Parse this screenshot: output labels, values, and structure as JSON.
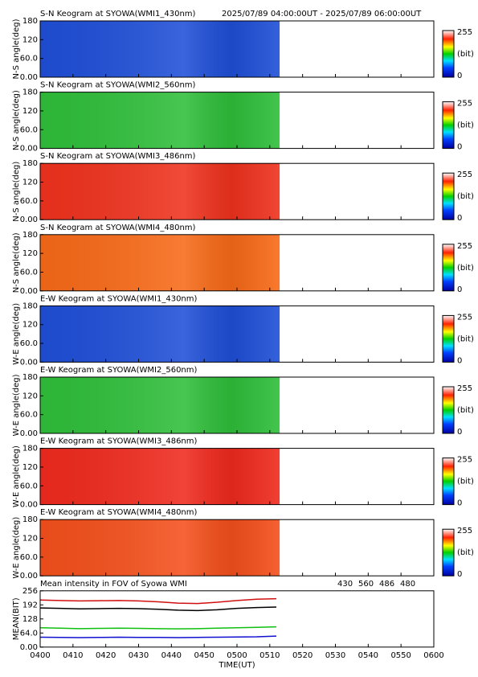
{
  "chart_data": [
    {
      "type": "heatmap",
      "title": "S-N Keogram at SYOWA(WMI1_430nm)",
      "subtitle": "2025/07/89 04:00:00UT - 2025/07/89 06:00:00UT",
      "ylabel": "N-S angle(deg)",
      "color": "#1f4fd8",
      "data_xlim": [
        0,
        73
      ],
      "ylim": [
        0,
        180
      ],
      "yticks": [
        {
          "value": 0,
          "label": "0.00"
        },
        {
          "value": 60,
          "label": "60.0"
        },
        120,
        180
      ],
      "clim": [
        0,
        255
      ],
      "clabel": "(bit)"
    },
    {
      "type": "heatmap",
      "title": "S-N Keogram at SYOWA(WMI2_560nm)",
      "ylabel": "N-S angle(deg)",
      "color": "#2fbf3a",
      "data_xlim": [
        0,
        73
      ],
      "ylim": [
        0,
        180
      ],
      "yticks": [
        {
          "value": 0,
          "label": "0.00"
        },
        {
          "value": 60,
          "label": "60.0"
        },
        120,
        180
      ],
      "clim": [
        0,
        255
      ],
      "clabel": "(bit)"
    },
    {
      "type": "heatmap",
      "title": "S-N Keogram at SYOWA(WMI3_486nm)",
      "ylabel": "N-S angle(deg)",
      "color": "#f0321e",
      "data_xlim": [
        0,
        73
      ],
      "ylim": [
        0,
        180
      ],
      "yticks": [
        {
          "value": 0,
          "label": "0.00"
        },
        {
          "value": 60,
          "label": "60.0"
        },
        120,
        180
      ],
      "clim": [
        0,
        255
      ],
      "clabel": "(bit)"
    },
    {
      "type": "heatmap",
      "title": "S-N Keogram at SYOWA(WMI4_480nm)",
      "ylabel": "N-S angle(deg)",
      "color": "#f86a18",
      "data_xlim": [
        0,
        73
      ],
      "ylim": [
        0,
        180
      ],
      "yticks": [
        {
          "value": 0,
          "label": "0.00"
        },
        {
          "value": 60,
          "label": "60.0"
        },
        120,
        180
      ],
      "clim": [
        0,
        255
      ],
      "clabel": "(bit)"
    },
    {
      "type": "heatmap",
      "title": "E-W Keogram at SYOWA(WMI1_430nm)",
      "ylabel": "W-E angle(deg)",
      "color": "#1f4fd8",
      "data_xlim": [
        0,
        73
      ],
      "ylim": [
        0,
        180
      ],
      "yticks": [
        {
          "value": 0,
          "label": "0.00"
        },
        {
          "value": 60,
          "label": "60.0"
        },
        120,
        180
      ],
      "clim": [
        0,
        255
      ],
      "clabel": "(bit)"
    },
    {
      "type": "heatmap",
      "title": "E-W Keogram at SYOWA(WMI2_560nm)",
      "ylabel": "W-E angle(deg)",
      "color": "#2fbf3a",
      "data_xlim": [
        0,
        73
      ],
      "ylim": [
        0,
        180
      ],
      "yticks": [
        {
          "value": 0,
          "label": "0.00"
        },
        {
          "value": 60,
          "label": "60.0"
        },
        120,
        180
      ],
      "clim": [
        0,
        255
      ],
      "clabel": "(bit)"
    },
    {
      "type": "heatmap",
      "title": "E-W Keogram at SYOWA(WMI3_486nm)",
      "ylabel": "W-E angle(deg)",
      "color": "#f02a1e",
      "data_xlim": [
        0,
        73
      ],
      "ylim": [
        0,
        180
      ],
      "yticks": [
        {
          "value": 0,
          "label": "0.00"
        },
        {
          "value": 60,
          "label": "60.0"
        },
        120,
        180
      ],
      "clim": [
        0,
        255
      ],
      "clabel": "(bit)"
    },
    {
      "type": "heatmap",
      "title": "E-W Keogram at SYOWA(WMI4_480nm)",
      "ylabel": "W-E angle(deg)",
      "color": "#f5501c",
      "data_xlim": [
        0,
        73
      ],
      "ylim": [
        0,
        180
      ],
      "yticks": [
        {
          "value": 0,
          "label": "0.00"
        },
        {
          "value": 60,
          "label": "60.0"
        },
        120,
        180
      ],
      "clim": [
        0,
        255
      ],
      "clabel": "(bit)"
    },
    {
      "type": "line",
      "title": "Mean intensity in FOV of Syowa WMI",
      "ylabel": "MEAN(BIT)",
      "xlabel": "TIME(UT)",
      "x": [
        0,
        6,
        12,
        18,
        24,
        30,
        36,
        42,
        48,
        54,
        60,
        66,
        72
      ],
      "series": [
        {
          "name": "430",
          "color": "#1010d0",
          "values": [
            45,
            44,
            43,
            44,
            45,
            44,
            44,
            43,
            44,
            45,
            46,
            47,
            50
          ]
        },
        {
          "name": "560",
          "color": "#10c010",
          "values": [
            88,
            86,
            84,
            85,
            86,
            85,
            84,
            83,
            84,
            86,
            88,
            90,
            92
          ]
        },
        {
          "name": "486",
          "color": "#d01010",
          "values": [
            214,
            212,
            210,
            211,
            212,
            210,
            206,
            200,
            198,
            204,
            212,
            218,
            220
          ]
        },
        {
          "name": "480",
          "color": "#000000",
          "values": [
            178,
            176,
            174,
            175,
            176,
            175,
            172,
            168,
            166,
            170,
            176,
            180,
            182
          ]
        }
      ],
      "xlim": [
        0,
        120
      ],
      "xticks": [
        {
          "value": 0,
          "label": "0400"
        },
        {
          "value": 10,
          "label": "0410"
        },
        {
          "value": 20,
          "label": "0420"
        },
        {
          "value": 30,
          "label": "0430"
        },
        {
          "value": 40,
          "label": "0440"
        },
        {
          "value": 50,
          "label": "0450"
        },
        {
          "value": 60,
          "label": "0500"
        },
        {
          "value": 70,
          "label": "0510"
        },
        {
          "value": 80,
          "label": "0520"
        },
        {
          "value": 90,
          "label": "0530"
        },
        {
          "value": 100,
          "label": "0540"
        },
        {
          "value": 110,
          "label": "0550"
        },
        {
          "value": 120,
          "label": "0600"
        }
      ],
      "ylim": [
        0,
        256
      ],
      "yticks": [
        {
          "value": 0,
          "label": "0.00"
        },
        {
          "value": 64,
          "label": "64.0"
        },
        128,
        192,
        256
      ]
    }
  ]
}
